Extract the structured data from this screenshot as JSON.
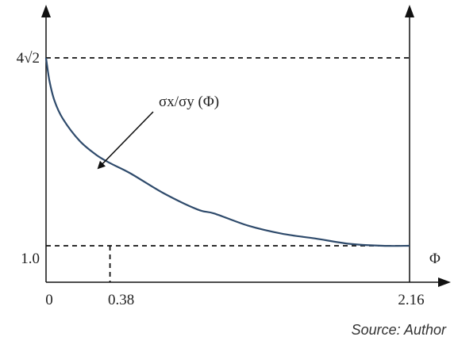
{
  "chart_data": {
    "type": "line",
    "series": [
      {
        "x": [
          0,
          0.02,
          0.05,
          0.1,
          0.2,
          0.3,
          0.38,
          0.5,
          0.7,
          0.9,
          1.0,
          1.2,
          1.4,
          1.6,
          1.8,
          2.0,
          2.16
        ],
        "y": [
          5.66,
          5.1,
          4.6,
          4.15,
          3.6,
          3.25,
          3.05,
          2.8,
          2.3,
          1.9,
          1.8,
          1.5,
          1.3,
          1.18,
          1.05,
          1.0,
          1.0
        ]
      }
    ],
    "xlabel": "Φ",
    "ylabel": "",
    "xlim": [
      0,
      2.16
    ],
    "ylim": [
      1.0,
      5.66
    ],
    "x_tick_labels": [
      {
        "value": 0,
        "label": "0"
      },
      {
        "value": 0.38,
        "label": "0.38"
      },
      {
        "value": 2.16,
        "label": "2.16"
      }
    ],
    "y_tick_labels": [
      {
        "value": 1.0,
        "label": "1.0"
      },
      {
        "value": 5.66,
        "label": "4√2"
      }
    ],
    "annotation": "σx/σy (Φ)",
    "grid": false,
    "right_axis": true
  },
  "source_note": "Source: Author"
}
